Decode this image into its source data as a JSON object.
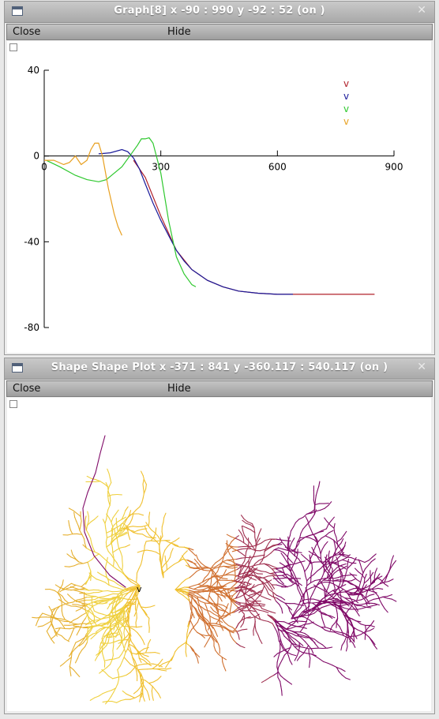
{
  "graph_window": {
    "title": "Graph[8]  x -90 : 990  y -92 : 52 (on )",
    "close_label": "Close",
    "hide_label": "Hide",
    "x_ticks": [
      "0",
      "300",
      "600",
      "900"
    ],
    "y_ticks": [
      "40",
      "0",
      "-40",
      "-80"
    ],
    "legend": [
      {
        "label": "v",
        "color": "#b0202a"
      },
      {
        "label": "v",
        "color": "#1a1a9a"
      },
      {
        "label": "v",
        "color": "#2ec82e"
      },
      {
        "label": "v",
        "color": "#e8a020"
      }
    ]
  },
  "shape_window": {
    "title": "Shape Shape Plot x -371 : 841  y -360.117 : 540.117 (on )",
    "close_label": "Close",
    "hide_label": "Hide",
    "soma_label": "v"
  },
  "chart_data": {
    "type": "line",
    "xlim": [
      0,
      900
    ],
    "ylim": [
      -80,
      40
    ],
    "series": [
      {
        "color": "#b0202a",
        "x": [
          230,
          260,
          300,
          340,
          380,
          420,
          460,
          500,
          550,
          600,
          700,
          800,
          850
        ],
        "y": [
          -2,
          -10,
          -28,
          -44,
          -53,
          -58,
          -61,
          -63,
          -64,
          -64.5,
          -64.5,
          -64.5,
          -64.5
        ]
      },
      {
        "color": "#1a1a9a",
        "x": [
          140,
          170,
          200,
          215,
          230,
          245,
          260,
          280,
          300,
          320,
          340,
          360,
          380,
          420,
          460,
          500,
          550,
          600,
          640
        ],
        "y": [
          1,
          1.5,
          3,
          2,
          -1,
          -6,
          -13,
          -22,
          -30,
          -37,
          -44,
          -49,
          -53,
          -58,
          -61,
          -63,
          -64,
          -64.5,
          -64.5
        ]
      },
      {
        "color": "#2ec82e",
        "x": [
          5,
          40,
          80,
          110,
          140,
          160,
          180,
          200,
          220,
          240,
          250,
          260,
          270,
          280,
          300,
          320,
          340,
          360,
          380,
          390
        ],
        "y": [
          -2,
          -5,
          -9,
          -11,
          -12,
          -11,
          -8,
          -5,
          0,
          5,
          8,
          8,
          8.5,
          6,
          -8,
          -30,
          -47,
          -55,
          -60,
          -61
        ]
      },
      {
        "color": "#e8a020",
        "x": [
          0,
          25,
          50,
          65,
          80,
          95,
          110,
          120,
          130,
          140,
          150,
          165,
          180,
          190,
          200
        ],
        "y": [
          -2,
          -2,
          -4,
          -3,
          0,
          -4,
          -2,
          3,
          6,
          6,
          0,
          -15,
          -27,
          -33,
          -37
        ]
      }
    ]
  }
}
